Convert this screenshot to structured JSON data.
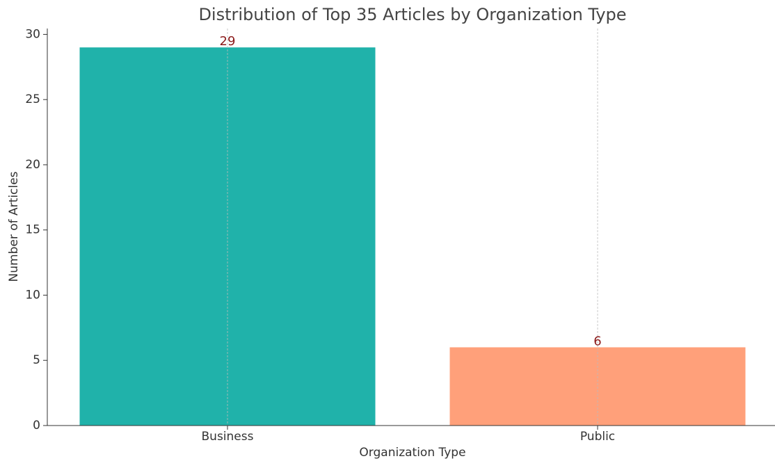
{
  "chart_data": {
    "type": "bar",
    "title": "Distribution of Top 35 Articles by Organization Type",
    "x_label": "Organization Type",
    "y_label": "Number of Articles",
    "categories": [
      "Business",
      "Public"
    ],
    "values": [
      29,
      6
    ],
    "colors": [
      "#20b2aa",
      "#ffa07a"
    ],
    "value_label_color": "#8b1a1a",
    "ylim": [
      0,
      30.45
    ],
    "yticks": [
      0,
      5,
      10,
      15,
      20,
      25,
      30
    ],
    "grid": "x"
  }
}
